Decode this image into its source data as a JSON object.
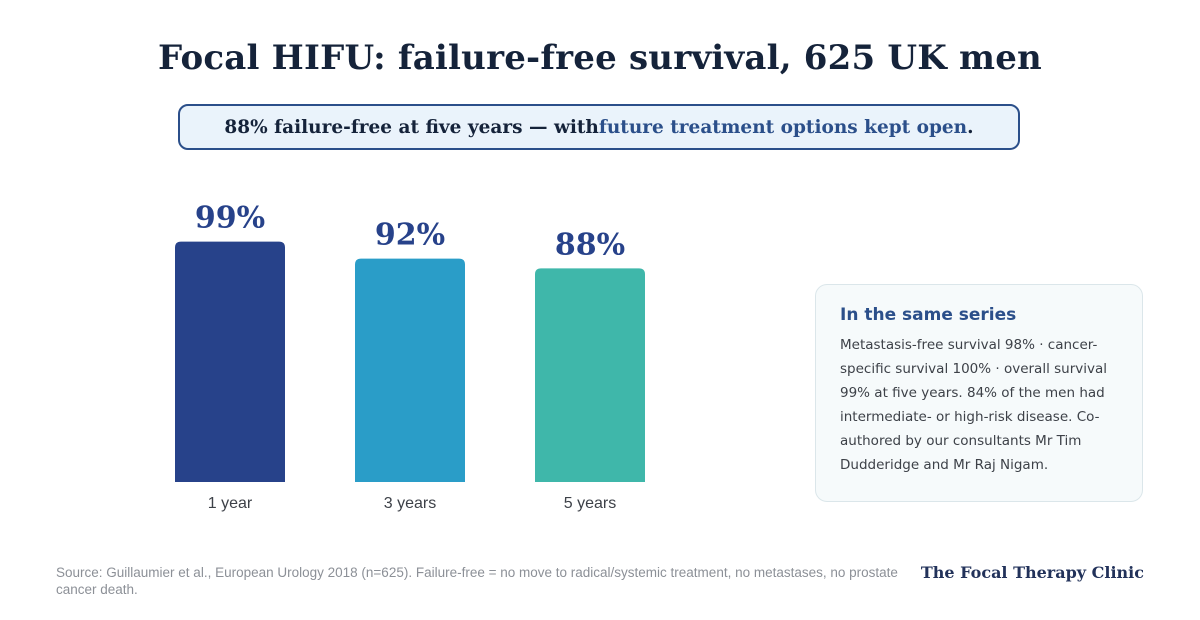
{
  "title": "Focal HIFU: failure-free survival, 625 UK men",
  "callout": {
    "text_before": "88% failure-free at five years — with ",
    "highlight": "future treatment options kept open",
    "text_after": "."
  },
  "chart_data": {
    "type": "bar",
    "categories": [
      "1 year",
      "3 years",
      "5 years"
    ],
    "values": [
      99,
      92,
      88
    ],
    "value_labels": [
      "99%",
      "92%",
      "88%"
    ],
    "colors": [
      "#27428a",
      "#2a9dc8",
      "#3fb7aa"
    ],
    "label_color": "#27428a",
    "title": "",
    "xlabel": "",
    "ylabel": "",
    "grid": false
  },
  "panel": {
    "heading": "In the same series",
    "body": "Metastasis-free survival 98% · cancer-specific survival 100% · overall survival 99% at five years. 84% of the men had intermediate- or high-risk disease. Co-authored by our consultants Mr Tim Dudderidge and Mr Raj Nigam."
  },
  "source": "Source: Guillaumier et al., European Urology 2018 (n=625). Failure-free = no move to radical/systemic treatment, no metastases, no prostate cancer death.",
  "brand": "The Focal Therapy Clinic"
}
